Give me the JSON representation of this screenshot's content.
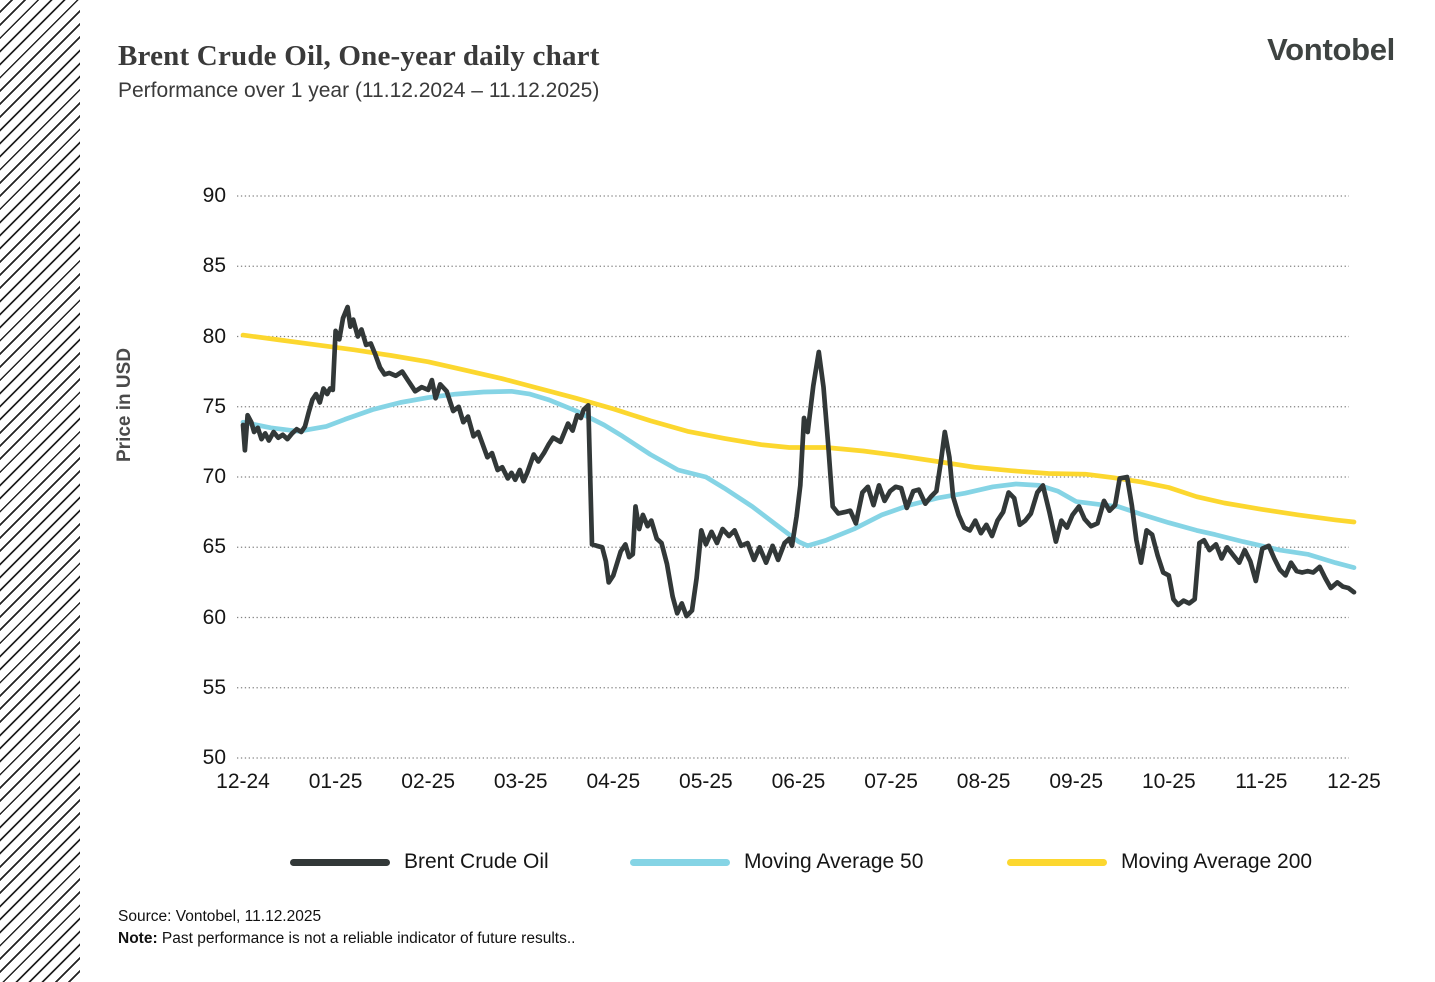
{
  "header": {
    "title": "Brent Crude Oil, One-year daily chart",
    "subtitle": "Performance over 1 year (11.12.2024 – 11.12.2025)",
    "logo": "Vontobel"
  },
  "footer": {
    "source": "Source: Vontobel, 11.12.2025",
    "note_label": "Note:",
    "note_text": " Past performance is not a reliable indicator of future results.."
  },
  "chart_data": {
    "type": "line",
    "title": "Brent Crude Oil, One-year daily chart",
    "xlabel": "",
    "ylabel": "Price in USD",
    "ylim": [
      50,
      90
    ],
    "xlim_months": [
      0,
      12
    ],
    "y_ticks": [
      90,
      85,
      80,
      75,
      70,
      65,
      60,
      55,
      50
    ],
    "x_labels": [
      "12-24",
      "01-25",
      "02-25",
      "03-25",
      "04-25",
      "05-25",
      "06-25",
      "07-25",
      "08-25",
      "09-25",
      "10-25",
      "11-25",
      "12-25"
    ],
    "grid": "horizontal-dotted",
    "gridline_color": "#828282",
    "legend_position": "bottom",
    "series": [
      {
        "name": "Brent Crude Oil",
        "color": "#323838",
        "points": [
          [
            0,
            73.7
          ],
          [
            0.02,
            71.9
          ],
          [
            0.05,
            74.4
          ],
          [
            0.09,
            73.9
          ],
          [
            0.12,
            73.2
          ],
          [
            0.16,
            73.5
          ],
          [
            0.2,
            72.7
          ],
          [
            0.24,
            73.1
          ],
          [
            0.28,
            72.6
          ],
          [
            0.33,
            73.2
          ],
          [
            0.38,
            72.8
          ],
          [
            0.43,
            73
          ],
          [
            0.48,
            72.7
          ],
          [
            0.53,
            73.1
          ],
          [
            0.58,
            73.4
          ],
          [
            0.63,
            73.2
          ],
          [
            0.67,
            73.6
          ],
          [
            0.71,
            74.6
          ],
          [
            0.75,
            75.5
          ],
          [
            0.79,
            75.9
          ],
          [
            0.83,
            75.3
          ],
          [
            0.87,
            76.3
          ],
          [
            0.91,
            75.9
          ],
          [
            0.94,
            76.3
          ],
          [
            0.97,
            76.2
          ],
          [
            1,
            80.4
          ],
          [
            1.04,
            79.8
          ],
          [
            1.08,
            81.3
          ],
          [
            1.13,
            82.1
          ],
          [
            1.16,
            80.7
          ],
          [
            1.19,
            81.2
          ],
          [
            1.24,
            80
          ],
          [
            1.28,
            80.5
          ],
          [
            1.33,
            79.4
          ],
          [
            1.38,
            79.5
          ],
          [
            1.43,
            78.7
          ],
          [
            1.48,
            77.8
          ],
          [
            1.53,
            77.3
          ],
          [
            1.58,
            77.4
          ],
          [
            1.65,
            77.2
          ],
          [
            1.72,
            77.5
          ],
          [
            1.79,
            76.8
          ],
          [
            1.86,
            76.1
          ],
          [
            1.93,
            76.4
          ],
          [
            2,
            76.2
          ],
          [
            2.04,
            76.9
          ],
          [
            2.08,
            75.6
          ],
          [
            2.13,
            76.6
          ],
          [
            2.2,
            76.1
          ],
          [
            2.27,
            74.7
          ],
          [
            2.33,
            75
          ],
          [
            2.38,
            73.9
          ],
          [
            2.43,
            74.3
          ],
          [
            2.49,
            72.9
          ],
          [
            2.54,
            73.2
          ],
          [
            2.64,
            71.4
          ],
          [
            2.69,
            71.7
          ],
          [
            2.75,
            70.5
          ],
          [
            2.8,
            70.7
          ],
          [
            2.86,
            69.9
          ],
          [
            2.9,
            70.3
          ],
          [
            2.94,
            69.8
          ],
          [
            2.99,
            70.5
          ],
          [
            3.03,
            69.7
          ],
          [
            3.07,
            70.3
          ],
          [
            3.14,
            71.6
          ],
          [
            3.19,
            71.1
          ],
          [
            3.25,
            71.7
          ],
          [
            3.3,
            72.3
          ],
          [
            3.35,
            72.8
          ],
          [
            3.43,
            72.5
          ],
          [
            3.51,
            73.8
          ],
          [
            3.56,
            73.3
          ],
          [
            3.61,
            74.4
          ],
          [
            3.65,
            74.2
          ],
          [
            3.68,
            74.8
          ],
          [
            3.73,
            75.1
          ],
          [
            3.77,
            65.2
          ],
          [
            3.82,
            65.1
          ],
          [
            3.88,
            65
          ],
          [
            3.92,
            64
          ],
          [
            3.95,
            62.5
          ],
          [
            4,
            63
          ],
          [
            4.08,
            64.7
          ],
          [
            4.13,
            65.2
          ],
          [
            4.17,
            64.3
          ],
          [
            4.21,
            64.5
          ],
          [
            4.24,
            67.9
          ],
          [
            4.28,
            66.3
          ],
          [
            4.32,
            67.3
          ],
          [
            4.37,
            66.5
          ],
          [
            4.41,
            66.9
          ],
          [
            4.47,
            65.6
          ],
          [
            4.52,
            65.3
          ],
          [
            4.58,
            63.8
          ],
          [
            4.64,
            61.5
          ],
          [
            4.69,
            60.3
          ],
          [
            4.74,
            61
          ],
          [
            4.79,
            60.1
          ],
          [
            4.85,
            60.5
          ],
          [
            4.9,
            62.8
          ],
          [
            4.95,
            66.2
          ],
          [
            5,
            65.2
          ],
          [
            5.06,
            66.1
          ],
          [
            5.12,
            65.3
          ],
          [
            5.18,
            66.3
          ],
          [
            5.25,
            65.8
          ],
          [
            5.31,
            66.2
          ],
          [
            5.38,
            65.1
          ],
          [
            5.45,
            65.3
          ],
          [
            5.52,
            64.1
          ],
          [
            5.58,
            65
          ],
          [
            5.65,
            63.9
          ],
          [
            5.72,
            65.1
          ],
          [
            5.78,
            64.1
          ],
          [
            5.85,
            65.3
          ],
          [
            5.9,
            65.6
          ],
          [
            5.93,
            65.1
          ],
          [
            5.98,
            67.2
          ],
          [
            6.02,
            69.4
          ],
          [
            6.06,
            74.2
          ],
          [
            6.1,
            73.2
          ],
          [
            6.16,
            76.5
          ],
          [
            6.22,
            78.9
          ],
          [
            6.27,
            76.4
          ],
          [
            6.32,
            72.4
          ],
          [
            6.37,
            67.9
          ],
          [
            6.43,
            67.4
          ],
          [
            6.5,
            67.5
          ],
          [
            6.56,
            67.6
          ],
          [
            6.62,
            66.7
          ],
          [
            6.69,
            68.9
          ],
          [
            6.75,
            69.3
          ],
          [
            6.81,
            68
          ],
          [
            6.87,
            69.4
          ],
          [
            6.93,
            68.3
          ],
          [
            6.99,
            69
          ],
          [
            7.05,
            69.3
          ],
          [
            7.11,
            69.2
          ],
          [
            7.17,
            67.8
          ],
          [
            7.24,
            69
          ],
          [
            7.3,
            69.1
          ],
          [
            7.37,
            68.1
          ],
          [
            7.43,
            68.6
          ],
          [
            7.49,
            69
          ],
          [
            7.54,
            71.2
          ],
          [
            7.58,
            73.2
          ],
          [
            7.63,
            71.4
          ],
          [
            7.67,
            68.6
          ],
          [
            7.73,
            67.3
          ],
          [
            7.79,
            66.4
          ],
          [
            7.85,
            66.2
          ],
          [
            7.91,
            66.9
          ],
          [
            7.97,
            66
          ],
          [
            8.03,
            66.6
          ],
          [
            8.09,
            65.8
          ],
          [
            8.15,
            66.9
          ],
          [
            8.21,
            67.5
          ],
          [
            8.27,
            68.9
          ],
          [
            8.33,
            68.5
          ],
          [
            8.39,
            66.6
          ],
          [
            8.45,
            66.9
          ],
          [
            8.51,
            67.4
          ],
          [
            8.58,
            68.9
          ],
          [
            8.64,
            69.4
          ],
          [
            8.71,
            67.5
          ],
          [
            8.78,
            65.4
          ],
          [
            8.84,
            66.9
          ],
          [
            8.9,
            66.4
          ],
          [
            8.96,
            67.3
          ],
          [
            9.03,
            67.9
          ],
          [
            9.09,
            67
          ],
          [
            9.16,
            66.5
          ],
          [
            9.23,
            66.7
          ],
          [
            9.3,
            68.3
          ],
          [
            9.36,
            67.6
          ],
          [
            9.42,
            68
          ],
          [
            9.47,
            69.9
          ],
          [
            9.55,
            70
          ],
          [
            9.6,
            68
          ],
          [
            9.65,
            65.5
          ],
          [
            9.7,
            63.9
          ],
          [
            9.76,
            66.2
          ],
          [
            9.82,
            65.9
          ],
          [
            9.88,
            64.4
          ],
          [
            9.94,
            63.2
          ],
          [
            10,
            63
          ],
          [
            10.05,
            61.3
          ],
          [
            10.1,
            60.9
          ],
          [
            10.16,
            61.2
          ],
          [
            10.22,
            61
          ],
          [
            10.28,
            61.3
          ],
          [
            10.33,
            65.3
          ],
          [
            10.38,
            65.5
          ],
          [
            10.44,
            64.8
          ],
          [
            10.51,
            65.2
          ],
          [
            10.57,
            64.2
          ],
          [
            10.63,
            65
          ],
          [
            10.7,
            64.4
          ],
          [
            10.76,
            63.9
          ],
          [
            10.82,
            64.8
          ],
          [
            10.88,
            64
          ],
          [
            10.94,
            62.6
          ],
          [
            11.01,
            64.9
          ],
          [
            11.08,
            65.1
          ],
          [
            11.14,
            64.2
          ],
          [
            11.2,
            63.4
          ],
          [
            11.26,
            63
          ],
          [
            11.32,
            63.9
          ],
          [
            11.38,
            63.3
          ],
          [
            11.44,
            63.2
          ],
          [
            11.5,
            63.3
          ],
          [
            11.56,
            63.2
          ],
          [
            11.63,
            63.6
          ],
          [
            11.69,
            62.8
          ],
          [
            11.75,
            62.1
          ],
          [
            11.82,
            62.5
          ],
          [
            11.88,
            62.2
          ],
          [
            11.94,
            62.1
          ],
          [
            12,
            61.8
          ]
        ]
      },
      {
        "name": "Moving Average 50",
        "color": "#85d4e5",
        "points": [
          [
            0,
            73.9
          ],
          [
            0.3,
            73.5
          ],
          [
            0.6,
            73.25
          ],
          [
            0.9,
            73.6
          ],
          [
            1.1,
            74.1
          ],
          [
            1.4,
            74.8
          ],
          [
            1.7,
            75.3
          ],
          [
            2,
            75.65
          ],
          [
            2.3,
            75.9
          ],
          [
            2.6,
            76.05
          ],
          [
            2.9,
            76.1
          ],
          [
            3.1,
            75.9
          ],
          [
            3.3,
            75.5
          ],
          [
            3.6,
            74.7
          ],
          [
            3.9,
            73.7
          ],
          [
            4.1,
            72.9
          ],
          [
            4.4,
            71.6
          ],
          [
            4.7,
            70.5
          ],
          [
            5,
            70
          ],
          [
            5.2,
            69.2
          ],
          [
            5.5,
            67.9
          ],
          [
            5.8,
            66.4
          ],
          [
            6,
            65.4
          ],
          [
            6.1,
            65.1
          ],
          [
            6.3,
            65.5
          ],
          [
            6.6,
            66.3
          ],
          [
            6.9,
            67.3
          ],
          [
            7.2,
            68
          ],
          [
            7.5,
            68.5
          ],
          [
            7.8,
            68.85
          ],
          [
            8.1,
            69.3
          ],
          [
            8.35,
            69.5
          ],
          [
            8.6,
            69.4
          ],
          [
            8.8,
            69
          ],
          [
            9,
            68.25
          ],
          [
            9.3,
            68
          ],
          [
            9.45,
            67.9
          ],
          [
            9.7,
            67.35
          ],
          [
            10,
            66.75
          ],
          [
            10.3,
            66.2
          ],
          [
            10.5,
            65.9
          ],
          [
            10.8,
            65.4
          ],
          [
            11,
            65.1
          ],
          [
            11.2,
            64.8
          ],
          [
            11.5,
            64.5
          ],
          [
            11.8,
            63.9
          ],
          [
            12,
            63.55
          ]
        ]
      },
      {
        "name": "Moving Average 200",
        "color": "#fcd72f",
        "points": [
          [
            0,
            80.1
          ],
          [
            0.4,
            79.75
          ],
          [
            0.8,
            79.4
          ],
          [
            1.2,
            79.05
          ],
          [
            1.6,
            78.65
          ],
          [
            2,
            78.2
          ],
          [
            2.4,
            77.6
          ],
          [
            2.8,
            77
          ],
          [
            3.2,
            76.3
          ],
          [
            3.6,
            75.6
          ],
          [
            4,
            74.85
          ],
          [
            4.4,
            74
          ],
          [
            4.8,
            73.25
          ],
          [
            5.2,
            72.75
          ],
          [
            5.6,
            72.3
          ],
          [
            5.9,
            72.1
          ],
          [
            6.3,
            72.1
          ],
          [
            6.7,
            71.85
          ],
          [
            7.1,
            71.5
          ],
          [
            7.5,
            71.1
          ],
          [
            7.9,
            70.7
          ],
          [
            8.3,
            70.45
          ],
          [
            8.7,
            70.25
          ],
          [
            9.1,
            70.2
          ],
          [
            9.4,
            69.95
          ],
          [
            9.7,
            69.65
          ],
          [
            10,
            69.25
          ],
          [
            10.3,
            68.6
          ],
          [
            10.6,
            68.15
          ],
          [
            11,
            67.7
          ],
          [
            11.4,
            67.3
          ],
          [
            11.8,
            66.95
          ],
          [
            12,
            66.8
          ]
        ]
      }
    ]
  }
}
